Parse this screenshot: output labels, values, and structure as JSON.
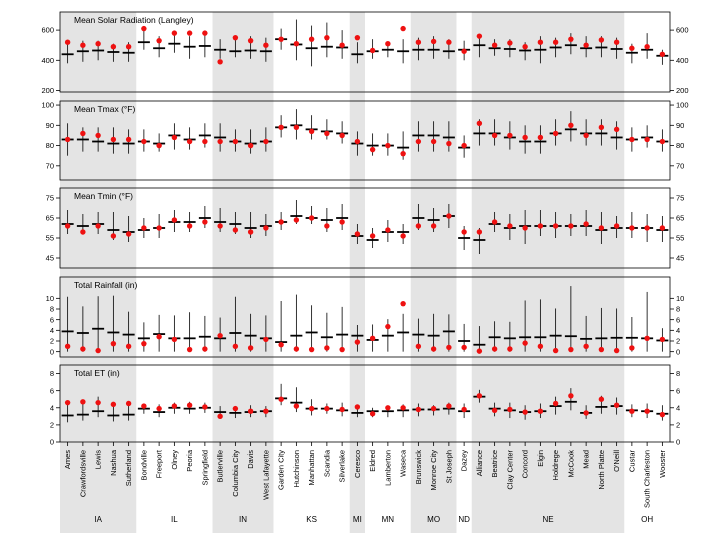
{
  "chart_data": {
    "type": "dot-range",
    "legend": "none",
    "sites": [
      {
        "name": "Ames",
        "state": "IA"
      },
      {
        "name": "Crawfordsville",
        "state": "IA"
      },
      {
        "name": "Lewis",
        "state": "IA"
      },
      {
        "name": "Nashua",
        "state": "IA"
      },
      {
        "name": "Sutherland",
        "state": "IA"
      },
      {
        "name": "Bondville",
        "state": "IL"
      },
      {
        "name": "Freeport",
        "state": "IL"
      },
      {
        "name": "Olney",
        "state": "IL"
      },
      {
        "name": "Peoria",
        "state": "IL"
      },
      {
        "name": "Springfield",
        "state": "IL"
      },
      {
        "name": "Butlerville",
        "state": "IN"
      },
      {
        "name": "Columbia City",
        "state": "IN"
      },
      {
        "name": "Davis",
        "state": "IN"
      },
      {
        "name": "West Lafayette",
        "state": "IN"
      },
      {
        "name": "Garden City",
        "state": "KS"
      },
      {
        "name": "Hutchinson",
        "state": "KS"
      },
      {
        "name": "Manhattan",
        "state": "KS"
      },
      {
        "name": "Scandia",
        "state": "KS"
      },
      {
        "name": "Silverlake",
        "state": "KS"
      },
      {
        "name": "Ceresco",
        "state": "MI"
      },
      {
        "name": "Eldred",
        "state": "MN"
      },
      {
        "name": "Lamberton",
        "state": "MN"
      },
      {
        "name": "Waseca",
        "state": "MN"
      },
      {
        "name": "Brunswick",
        "state": "MO"
      },
      {
        "name": "Monroe City",
        "state": "MO"
      },
      {
        "name": "St Joseph",
        "state": "MO"
      },
      {
        "name": "Dazey",
        "state": "ND"
      },
      {
        "name": "Alliance",
        "state": "NE"
      },
      {
        "name": "Beatrice",
        "state": "NE"
      },
      {
        "name": "Clay Center",
        "state": "NE"
      },
      {
        "name": "Concord",
        "state": "NE"
      },
      {
        "name": "Elgin",
        "state": "NE"
      },
      {
        "name": "Holdrege",
        "state": "NE"
      },
      {
        "name": "McCook",
        "state": "NE"
      },
      {
        "name": "Mead",
        "state": "NE"
      },
      {
        "name": "North Platte",
        "state": "NE"
      },
      {
        "name": "O'Neill",
        "state": "NE"
      },
      {
        "name": "Custar",
        "state": "OH"
      },
      {
        "name": "South Charleston",
        "state": "OH"
      },
      {
        "name": "Wooster",
        "state": "OH"
      }
    ],
    "states": [
      {
        "label": "IA",
        "shaded": true
      },
      {
        "label": "IL",
        "shaded": false
      },
      {
        "label": "IN",
        "shaded": true
      },
      {
        "label": "KS",
        "shaded": false
      },
      {
        "label": "MI",
        "shaded": true
      },
      {
        "label": "MN",
        "shaded": false
      },
      {
        "label": "MO",
        "shaded": true
      },
      {
        "label": "ND",
        "shaded": false
      },
      {
        "label": "NE",
        "shaded": true
      },
      {
        "label": "OH",
        "shaded": false
      }
    ],
    "panels": [
      {
        "title": "Mean Solar Radiation (Langley)",
        "ylim": [
          190,
          720
        ],
        "yticks": [
          200,
          400,
          600
        ],
        "mean": [
          440,
          460,
          465,
          455,
          450,
          520,
          480,
          510,
          490,
          495,
          470,
          460,
          465,
          460,
          540,
          505,
          480,
          490,
          485,
          440,
          460,
          470,
          460,
          470,
          470,
          460,
          470,
          500,
          480,
          475,
          465,
          470,
          485,
          500,
          480,
          485,
          475,
          450,
          470,
          430
        ],
        "low": [
          380,
          390,
          400,
          390,
          390,
          470,
          420,
          450,
          410,
          420,
          410,
          420,
          410,
          390,
          470,
          400,
          360,
          420,
          410,
          380,
          410,
          420,
          380,
          400,
          410,
          410,
          400,
          420,
          430,
          420,
          400,
          380,
          420,
          440,
          420,
          420,
          410,
          380,
          410,
          370
        ],
        "high": [
          510,
          530,
          530,
          510,
          520,
          610,
          560,
          580,
          560,
          590,
          540,
          540,
          560,
          550,
          610,
          670,
          630,
          650,
          600,
          520,
          540,
          520,
          540,
          550,
          560,
          540,
          530,
          560,
          540,
          540,
          520,
          560,
          550,
          580,
          560,
          560,
          550,
          510,
          580,
          470
        ],
        "red": [
          520,
          500,
          510,
          490,
          490,
          610,
          530,
          580,
          580,
          580,
          390,
          550,
          530,
          500,
          540,
          510,
          540,
          550,
          500,
          550,
          465,
          510,
          610,
          520,
          525,
          520,
          460,
          560,
          500,
          515,
          490,
          520,
          520,
          540,
          500,
          535,
          520,
          480,
          490,
          440
        ]
      },
      {
        "title": "Mean Tmax (°F)",
        "ylim": [
          63,
          102
        ],
        "yticks": [
          70,
          80,
          90,
          100
        ],
        "mean": [
          83,
          83,
          82,
          81,
          81,
          82,
          81,
          85,
          83,
          85,
          84,
          82,
          81,
          82,
          89,
          90,
          88,
          87,
          86,
          81,
          80,
          80,
          79,
          85,
          85,
          84,
          79,
          86,
          86,
          84,
          82,
          82,
          86,
          88,
          86,
          86,
          84,
          83,
          84,
          82
        ],
        "low": [
          75,
          77,
          77,
          76,
          76,
          77,
          77,
          78,
          78,
          79,
          77,
          77,
          76,
          77,
          84,
          83,
          83,
          83,
          81,
          75,
          75,
          75,
          73,
          77,
          77,
          77,
          74,
          80,
          80,
          78,
          76,
          76,
          80,
          82,
          80,
          80,
          78,
          77,
          79,
          77
        ],
        "high": [
          91,
          89,
          89,
          89,
          88,
          88,
          86,
          91,
          89,
          91,
          91,
          88,
          88,
          89,
          95,
          98,
          95,
          93,
          92,
          87,
          86,
          86,
          87,
          92,
          92,
          92,
          85,
          93,
          93,
          92,
          90,
          90,
          93,
          97,
          93,
          93,
          92,
          89,
          90,
          88
        ],
        "red": [
          83,
          86,
          85,
          83,
          83,
          82,
          80,
          84,
          82,
          82,
          82,
          82,
          80,
          82,
          89,
          89,
          87,
          86,
          85,
          82,
          78,
          80,
          76,
          82,
          82,
          81,
          80,
          91,
          85,
          85,
          84,
          84,
          86,
          90,
          85,
          89,
          88,
          83,
          83,
          82
        ]
      },
      {
        "title": "Mean Tmin (°F)",
        "ylim": [
          40,
          80
        ],
        "yticks": [
          45,
          55,
          65,
          75
        ],
        "mean": [
          62,
          61,
          62,
          59,
          58,
          59,
          60,
          63,
          63,
          65,
          63,
          62,
          60,
          61,
          63,
          66,
          65,
          64,
          65,
          56,
          54,
          58,
          58,
          65,
          64,
          66,
          55,
          54,
          62,
          60,
          61,
          61,
          61,
          61,
          61,
          59,
          60,
          60,
          60,
          59
        ],
        "low": [
          57,
          57,
          57,
          54,
          53,
          55,
          55,
          58,
          58,
          60,
          58,
          57,
          55,
          56,
          59,
          62,
          62,
          58,
          59,
          52,
          50,
          53,
          52,
          59,
          58,
          60,
          49,
          47,
          58,
          54,
          52,
          56,
          55,
          56,
          56,
          52,
          55,
          55,
          53,
          53
        ],
        "high": [
          69,
          67,
          68,
          68,
          66,
          65,
          67,
          69,
          68,
          71,
          70,
          68,
          68,
          67,
          68,
          74,
          71,
          70,
          72,
          62,
          60,
          64,
          62,
          72,
          70,
          72,
          61,
          60,
          68,
          67,
          69,
          69,
          68,
          67,
          69,
          68,
          66,
          68,
          67,
          66
        ],
        "red": [
          61,
          58,
          61,
          56,
          57,
          60,
          60,
          64,
          61,
          63,
          61,
          59,
          58,
          60,
          63,
          64,
          65,
          61,
          63,
          57,
          56,
          59,
          56,
          61,
          61,
          66,
          58,
          58,
          63,
          61,
          60,
          61,
          61,
          61,
          62,
          60,
          61,
          60,
          60,
          60
        ]
      },
      {
        "title": "Total Rainfall (in)",
        "ylim": [
          -1,
          14
        ],
        "yticks": [
          0,
          2,
          4,
          6,
          8,
          10
        ],
        "mean": [
          3.8,
          3.5,
          4.3,
          3.6,
          3.2,
          2.5,
          3.3,
          2.5,
          2.5,
          2.8,
          2.5,
          3.5,
          3.0,
          2.5,
          1.8,
          3.0,
          3.6,
          2.7,
          3.2,
          3.0,
          2.2,
          3.0,
          3.6,
          3.2,
          3.0,
          3.8,
          2.0,
          1.3,
          2.7,
          2.5,
          2.7,
          2.7,
          3.0,
          2.9,
          2.4,
          2.5,
          2.6,
          2.6,
          2.5,
          2.1
        ],
        "low": [
          0,
          0,
          0,
          0,
          0,
          0,
          0,
          0,
          0,
          0,
          0,
          0,
          0,
          0,
          0,
          0,
          0,
          0,
          0,
          0,
          0,
          0,
          0,
          0,
          0,
          0,
          0,
          0,
          0,
          0,
          0,
          0,
          0,
          0,
          0,
          0,
          0,
          0,
          0,
          0
        ],
        "high": [
          10.3,
          8.5,
          10.4,
          10.5,
          7.5,
          5.5,
          6.9,
          6.8,
          7.4,
          6.7,
          6.4,
          10.3,
          7.1,
          6.8,
          9.5,
          10.7,
          8.7,
          7.3,
          8.4,
          5.0,
          5.1,
          6.1,
          7.1,
          6.2,
          7.1,
          7.0,
          5.2,
          4.8,
          5.7,
          5.6,
          9.6,
          9.8,
          8.1,
          12.3,
          6.7,
          8.2,
          8.1,
          6.5,
          11.2,
          4.4
        ],
        "red": [
          1.0,
          0.5,
          0.2,
          1.5,
          1.0,
          1.5,
          2.8,
          2.3,
          0.4,
          0.5,
          3.0,
          1.0,
          0.7,
          2.3,
          1.3,
          0.5,
          0.4,
          0.7,
          0.4,
          1.8,
          2.5,
          4.7,
          9.0,
          1.0,
          0.5,
          0.8,
          0.8,
          0.1,
          0.5,
          0.5,
          1.6,
          1.0,
          0.2,
          0.4,
          1.0,
          0.4,
          0.2,
          0.7,
          2.5,
          2.3
        ]
      },
      {
        "title": "Total ET (in)",
        "ylim": [
          0,
          9
        ],
        "yticks": [
          0,
          2,
          4,
          6,
          8
        ],
        "mean": [
          3.1,
          3.2,
          3.6,
          3.1,
          3.2,
          3.9,
          3.5,
          4.0,
          3.9,
          4.0,
          3.5,
          3.4,
          3.5,
          3.6,
          5.1,
          4.6,
          3.9,
          3.9,
          3.7,
          3.4,
          3.6,
          3.6,
          3.7,
          3.8,
          3.8,
          3.9,
          3.6,
          5.3,
          3.9,
          3.7,
          3.5,
          3.6,
          4.2,
          4.7,
          3.4,
          4.1,
          4.2,
          3.7,
          3.6,
          3.3
        ],
        "low": [
          2.3,
          2.5,
          2.9,
          2.4,
          2.5,
          3.3,
          2.9,
          3.3,
          3.3,
          3.4,
          2.8,
          2.8,
          2.9,
          2.9,
          4.3,
          3.5,
          3.1,
          3.3,
          3.0,
          2.9,
          2.9,
          2.9,
          2.9,
          3.0,
          3.1,
          3.2,
          2.8,
          4.6,
          3.0,
          2.8,
          2.6,
          2.8,
          3.2,
          3.7,
          2.7,
          3.3,
          3.2,
          2.9,
          2.8,
          2.5
        ],
        "high": [
          4.8,
          4.9,
          5.3,
          4.5,
          4.4,
          4.5,
          4.4,
          4.6,
          4.7,
          4.6,
          4.2,
          4.2,
          4.3,
          4.2,
          6.8,
          6.4,
          5.0,
          4.5,
          4.6,
          4.2,
          4.0,
          4.2,
          4.4,
          4.5,
          4.3,
          4.6,
          4.5,
          6.1,
          4.6,
          4.6,
          4.3,
          4.5,
          5.3,
          6.3,
          4.3,
          5.4,
          5.2,
          4.4,
          4.5,
          4.3
        ],
        "red": [
          4.6,
          4.7,
          4.6,
          4.4,
          4.5,
          4.2,
          3.9,
          4.2,
          4.3,
          4.1,
          3.0,
          3.9,
          3.6,
          3.6,
          5.0,
          4.2,
          3.9,
          3.9,
          3.8,
          4.1,
          3.3,
          4.0,
          4.0,
          3.8,
          3.9,
          4.2,
          3.8,
          5.4,
          3.7,
          3.8,
          3.5,
          3.6,
          4.5,
          5.4,
          3.4,
          5.0,
          4.3,
          3.6,
          3.6,
          3.2
        ]
      }
    ]
  },
  "colors": {
    "shade": "#e4e4e4",
    "dot": "#ee1111",
    "mean": "#000000",
    "range": "#000000",
    "frame": "#000000"
  }
}
